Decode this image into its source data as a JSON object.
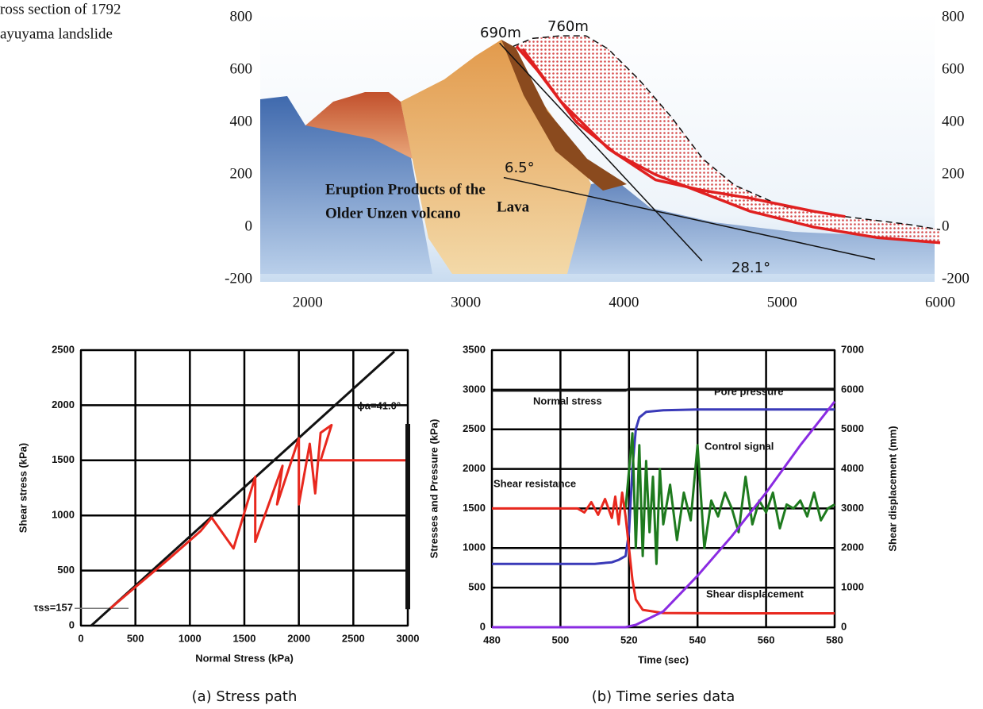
{
  "figure_caption": [
    "ross section of 1792",
    "ayuyama landslide"
  ],
  "chart_data": [
    {
      "type": "profile",
      "xlim": [
        1700,
        6000
      ],
      "ylim": [
        -200,
        800
      ],
      "xticks": [
        2000,
        3000,
        4000,
        5000,
        6000
      ],
      "yticks": [
        -200,
        0,
        200,
        400,
        600,
        800
      ],
      "grid": false,
      "series": [
        {
          "color": "#111111",
          "dashed": true,
          "x": [
            3300,
            3420,
            3600,
            3760,
            3900,
            4100,
            4300,
            4500,
            4700,
            5000,
            5400,
            5800,
            6000
          ],
          "values": [
            690,
            720,
            730,
            730,
            680,
            560,
            420,
            260,
            160,
            80,
            40,
            10,
            -10
          ]
        },
        {
          "color": "#e02020",
          "dashed": false,
          "x": [
            3320,
            3450,
            3700,
            3950,
            4200,
            4500,
            4800,
            5200,
            5600,
            6000
          ],
          "values": [
            690,
            600,
            400,
            280,
            200,
            130,
            60,
            0,
            -40,
            -60
          ]
        },
        {
          "color": "#e02020",
          "dashed": false,
          "x": [
            3360,
            3600,
            3900,
            4200,
            4500,
            4800,
            5200,
            5400
          ],
          "values": [
            680,
            480,
            300,
            180,
            140,
            110,
            60,
            40
          ]
        },
        {
          "color": "#111111",
          "dashed": false,
          "x": [
            3240,
            5588
          ],
          "values": [
            189,
            -123
          ]
        },
        {
          "color": "#111111",
          "dashed": false,
          "x": [
            3214,
            4494
          ],
          "values": [
            702,
            -129
          ]
        }
      ],
      "annotations": [
        "690m",
        "760m",
        "6.5°",
        "28.1°",
        "Eruption Products of the",
        "Older Unzen volcano",
        "Lava"
      ]
    },
    {
      "type": "line",
      "x_label": "Normal Stress (kPa)",
      "y_label": "Shear stress (kPa)",
      "caption": "(a) Stress path",
      "xlim": [
        0,
        3000
      ],
      "ylim": [
        0,
        2500
      ],
      "xticks": [
        0,
        500,
        1000,
        1500,
        2000,
        2500,
        3000
      ],
      "yticks": [
        0,
        500,
        1000,
        1500,
        2000,
        2500
      ],
      "grid": true,
      "series": [
        {
          "color": "#111111",
          "x": [
            95,
            2876
          ],
          "values": [
            0,
            2486
          ]
        },
        {
          "color": "#e8281e",
          "x": [
            270,
            500,
            800,
            1100,
            1200,
            1400,
            1600,
            1600,
            1850,
            1800,
            2000,
            2000,
            2100,
            2150,
            2200,
            2300,
            2200,
            3000
          ],
          "values": [
            157,
            350,
            600,
            860,
            980,
            700,
            1350,
            760,
            1450,
            1100,
            1700,
            1100,
            1650,
            1200,
            1750,
            1820,
            1500,
            1500
          ]
        },
        {
          "color": "#111111",
          "x": [
            3000,
            3000
          ],
          "values": [
            150,
            1830
          ]
        }
      ],
      "reference_lines": [
        {
          "value": 157,
          "label": "τss=157"
        }
      ],
      "annotations": [
        "ϕa=41.0°"
      ]
    },
    {
      "type": "line",
      "x_label": "Time (sec)",
      "y_label": "Stresses and Pressure (kPa)",
      "y2_label": "Shear displacement (mm)",
      "caption": "(b) Time series data",
      "xlim": [
        480,
        580
      ],
      "ylim": [
        0,
        3500
      ],
      "y2lim": [
        0,
        7000
      ],
      "xticks": [
        480,
        500,
        520,
        540,
        560,
        580
      ],
      "yticks": [
        0,
        500,
        1000,
        1500,
        2000,
        2500,
        3000,
        3500
      ],
      "y2ticks": [
        0,
        1000,
        2000,
        3000,
        4000,
        5000,
        6000,
        7000
      ],
      "grid": true,
      "series": [
        {
          "name": "Normal stress",
          "color": "#111111",
          "x": [
            480,
            519,
            520,
            580
          ],
          "values": [
            2990,
            2990,
            3010,
            3010
          ]
        },
        {
          "name": "Pore pressure",
          "color": "#3a3ab8",
          "x": [
            480,
            510,
            515,
            517,
            519,
            520,
            521,
            522,
            523,
            525,
            530,
            540,
            580
          ],
          "values": [
            800,
            800,
            820,
            850,
            900,
            1200,
            2000,
            2500,
            2650,
            2720,
            2740,
            2750,
            2750
          ]
        },
        {
          "name": "Control signal",
          "color": "#1e7a1e",
          "x": [
            519,
            521,
            522,
            523,
            524,
            525,
            526,
            527,
            528,
            529,
            530,
            532,
            534,
            536,
            538,
            540,
            542,
            544,
            546,
            548,
            550,
            552,
            554,
            556,
            558,
            560,
            562,
            564,
            566,
            568,
            570,
            572,
            574,
            576,
            578,
            580
          ],
          "values": [
            1500,
            2450,
            1000,
            2300,
            900,
            2100,
            1200,
            1900,
            800,
            2000,
            1300,
            1800,
            1100,
            1700,
            1350,
            2300,
            1000,
            1600,
            1400,
            1700,
            1500,
            1200,
            1900,
            1300,
            1600,
            1450,
            1700,
            1250,
            1550,
            1500,
            1600,
            1400,
            1700,
            1350,
            1500,
            1550
          ]
        },
        {
          "name": "Shear resistance",
          "color": "#e8281e",
          "x": [
            480,
            505,
            507,
            509,
            511,
            513,
            515,
            516,
            517,
            518,
            519,
            520,
            521,
            522,
            524,
            530,
            550,
            580
          ],
          "values": [
            1500,
            1500,
            1450,
            1580,
            1420,
            1620,
            1380,
            1650,
            1300,
            1700,
            1400,
            1000,
            600,
            350,
            220,
            180,
            175,
            175
          ]
        },
        {
          "name": "Shear displacement",
          "color": "#8a2be2",
          "axis": "y2",
          "x": [
            480,
            519,
            522,
            530,
            540,
            550,
            560,
            570,
            580
          ],
          "values": [
            0,
            0,
            60,
            400,
            1300,
            2300,
            3400,
            4600,
            5700
          ]
        }
      ]
    }
  ]
}
